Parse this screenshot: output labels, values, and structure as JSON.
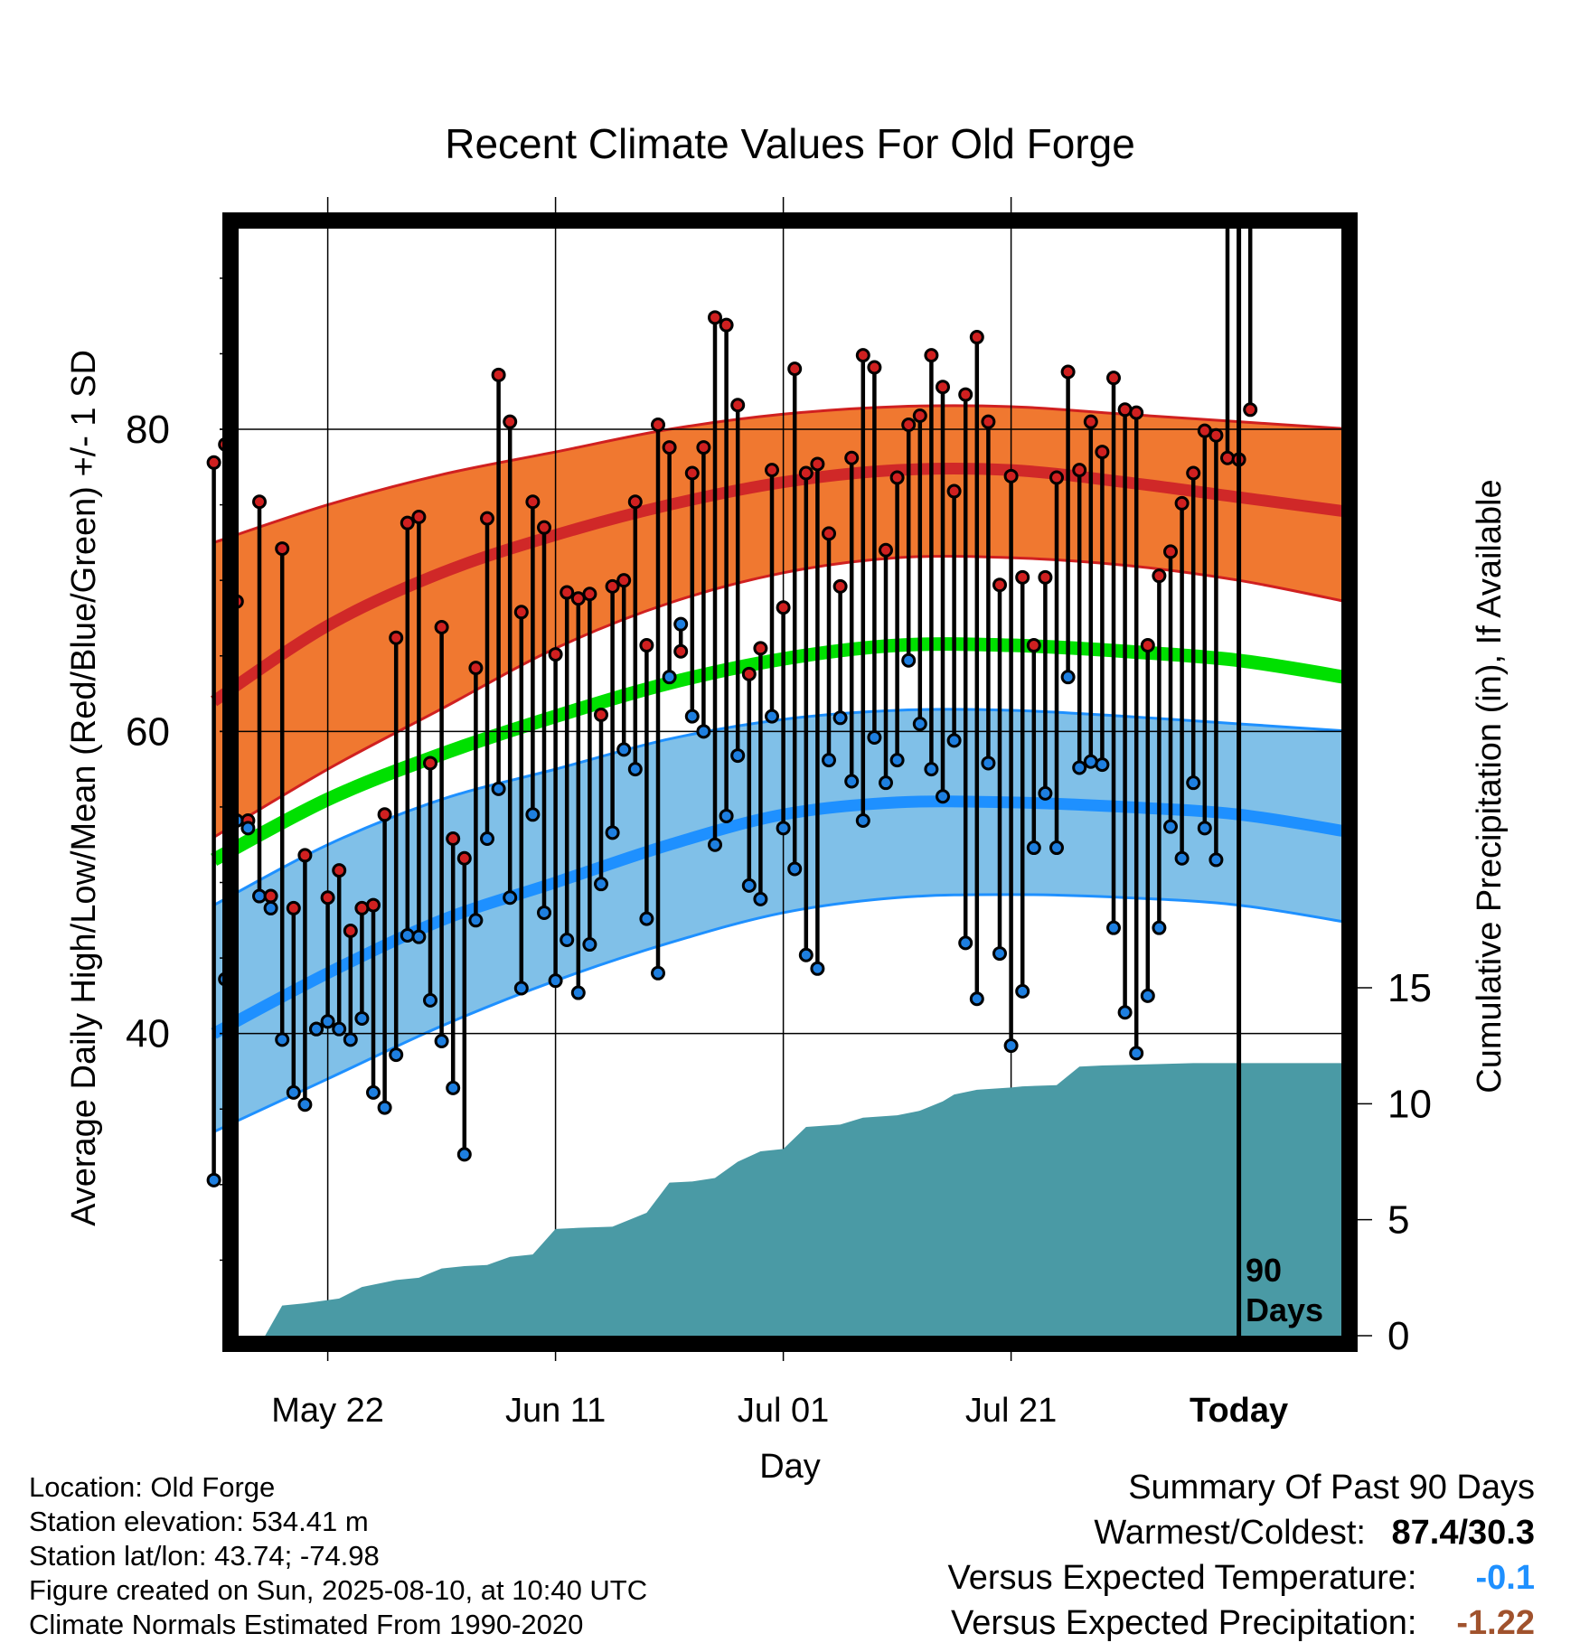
{
  "chart_data": {
    "type": "line",
    "title": "Recent Climate Values For Old Forge",
    "xlabel": "Day",
    "ylabel": "Average Daily High/Low/Mean (Red/Blue/Green) +/- 1 SD",
    "y2label": "Cumulative Precipitation (in), If Available",
    "x_tick_labels": [
      "May 22",
      "Jun 11",
      "Jul 01",
      "Jul 21",
      "Today"
    ],
    "x_tick_days": [
      10,
      30,
      50,
      70,
      90
    ],
    "xlim": [
      -1,
      99
    ],
    "ylim": [
      20,
      93.7
    ],
    "y_ticks": [
      40,
      60,
      80
    ],
    "y2lim": [
      0,
      48
    ],
    "y2_ticks": [
      0,
      5,
      10,
      15
    ],
    "today_marker": {
      "day": 90,
      "label_line1": "90",
      "label_line2": "Days"
    },
    "grid": true,
    "colors": {
      "high_band": "#f07830",
      "high_band_edge": "#d02020",
      "high_mean": "#d02828",
      "low_band": "#80c0e8",
      "low_band_edge": "#1e90ff",
      "low_mean": "#1e90ff",
      "mean": "#00e000",
      "precip": "#4a9aa5",
      "high_dot": "#d02020",
      "low_dot": "#1e7fe0"
    },
    "normals": {
      "day": [
        0,
        10,
        20,
        30,
        40,
        50,
        60,
        70,
        80,
        90,
        100
      ],
      "high_mean": [
        62,
        67,
        70.5,
        73,
        75,
        76.5,
        77.3,
        77.3,
        76.5,
        75.5,
        74.5
      ],
      "high_upper": [
        72.5,
        75,
        77,
        78.5,
        80,
        81,
        81.5,
        81.5,
        81,
        80.5,
        80
      ],
      "high_lower": [
        53,
        57.5,
        61.5,
        65.5,
        68.5,
        70.5,
        71.5,
        71.5,
        71,
        70,
        68.5
      ],
      "mean": [
        51.5,
        55.5,
        58.5,
        61,
        63.2,
        64.8,
        65.7,
        65.7,
        65.3,
        64.7,
        63.5
      ],
      "low_mean": [
        40,
        44,
        47.5,
        50,
        52.5,
        54.5,
        55.3,
        55.3,
        55,
        54.5,
        53.3
      ],
      "low_upper": [
        48.5,
        52.5,
        55.5,
        57.5,
        59.5,
        60.8,
        61.4,
        61.4,
        61,
        60.5,
        60
      ],
      "low_lower": [
        33.5,
        37,
        40.5,
        43.5,
        46,
        48,
        49,
        49.2,
        49,
        48.5,
        47.3
      ]
    },
    "series": [
      {
        "name": "High",
        "values": [
          77.8,
          79,
          68.6,
          54.1,
          75.2,
          49.1,
          72.1,
          48.3,
          51.8,
          40.3,
          49,
          50.8,
          46.8,
          48.3,
          48.5,
          54.5,
          66.2,
          73.8,
          74.2,
          57.9,
          66.9,
          52.9,
          51.6,
          64.2,
          74.1,
          83.6,
          80.5,
          67.9,
          75.2,
          73.5,
          65.1,
          69.2,
          68.8,
          69.1,
          61.1,
          69.6,
          70,
          75.2,
          65.7,
          80.3,
          78.8,
          65.3,
          77.1,
          78.8,
          87.4,
          86.9,
          81.6,
          63.8,
          65.5,
          77.3,
          68.2,
          84,
          77.1,
          77.7,
          73.1,
          69.6,
          78.1,
          84.9,
          84.1,
          72,
          76.8,
          80.3,
          80.9,
          84.9,
          82.8,
          75.9,
          82.3,
          86.1,
          80.5,
          69.7,
          76.9,
          70.2,
          65.7,
          70.2,
          76.8,
          83.8,
          77.3,
          80.5,
          78.5,
          83.4,
          81.3,
          81.1,
          65.7,
          70.3,
          71.9,
          75.1,
          77.1,
          79.9,
          79.6,
          78.1,
          78,
          81.3
        ]
      },
      {
        "name": "Low",
        "values": [
          30.3,
          43.6,
          54.1,
          53.6,
          49.1,
          48.3,
          39.6,
          36.1,
          35.3,
          40.3,
          40.8,
          40.3,
          39.6,
          41,
          36.1,
          35.1,
          38.6,
          46.5,
          46.4,
          42.2,
          39.5,
          36.4,
          32,
          47.5,
          52.9,
          56.2,
          49,
          43,
          54.5,
          48,
          43.5,
          46.2,
          42.7,
          45.9,
          49.9,
          53.3,
          58.8,
          57.5,
          47.6,
          44,
          63.6,
          67.1,
          61,
          60,
          52.5,
          54.4,
          58.4,
          49.8,
          48.9,
          61,
          53.6,
          50.9,
          45.2,
          44.3,
          58.1,
          60.9,
          56.7,
          54.1,
          59.6,
          56.6,
          58.1,
          64.7,
          60.5,
          57.5,
          55.7,
          59.4,
          46,
          42.3,
          57.9,
          45.3,
          39.2,
          42.8,
          52.3,
          55.9,
          52.3,
          63.6,
          57.6,
          58,
          57.8,
          47,
          41.4,
          38.7,
          42.5,
          47,
          53.7,
          51.6,
          56.6,
          53.6,
          51.5
        ]
      },
      {
        "name": "Cumulative Precipitation",
        "x": [
          4.5,
          6,
          8,
          11,
          13,
          15,
          16,
          18,
          20,
          22,
          24,
          26,
          28,
          30,
          32,
          35,
          38,
          40,
          42,
          44,
          46,
          48,
          50,
          52,
          55,
          57,
          60,
          62,
          64,
          65,
          67,
          70,
          71,
          74,
          76,
          78,
          82,
          86,
          90,
          99
        ],
        "values": [
          0,
          1.3,
          1.4,
          1.6,
          2.1,
          2.3,
          2.4,
          2.5,
          2.9,
          3,
          3.05,
          3.4,
          3.5,
          4.6,
          4.65,
          4.7,
          5.3,
          6.6,
          6.65,
          6.8,
          7.5,
          7.95,
          8.05,
          9,
          9.1,
          9.4,
          9.5,
          9.7,
          10.1,
          10.4,
          10.6,
          10.7,
          10.75,
          10.8,
          11.6,
          11.65,
          11.7,
          11.75,
          11.75,
          11.75
        ]
      }
    ]
  },
  "meta": {
    "location": "Location: Old Forge",
    "elevation": "Station elevation: 534.41 m",
    "latlon": "Station lat/lon: 43.74; -74.98",
    "created": "Figure created on Sun, 2025-08-10, at 10:40 UTC",
    "normals": "Climate Normals Estimated From 1990-2020"
  },
  "summary": {
    "title": "Summary Of Past 90 Days",
    "warm_cold_label": "Warmest/Coldest:",
    "warm_cold_value": "87.4/30.3",
    "temp_label": "Versus Expected Temperature:",
    "temp_value": "-0.1",
    "temp_color": "#1e90ff",
    "precip_label": "Versus Expected Precipitation:",
    "precip_value": "-1.22",
    "precip_color": "#a0522d"
  }
}
